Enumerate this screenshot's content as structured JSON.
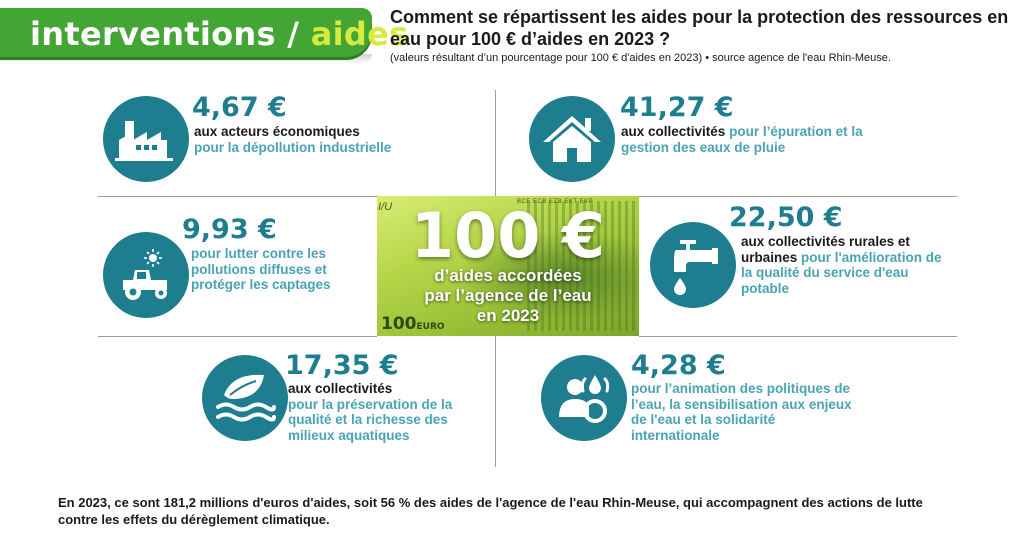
{
  "tab": {
    "word1": "interventions",
    "sep": " / ",
    "word2": "aides"
  },
  "header": {
    "title": "Comment se répartissent les aides pour la protection des ressources en eau pour 100 € d’aides en 2023 ?",
    "subtitle": "(valeurs résultant d’un pourcentage pour 100 € d'aides en 2023) • source agence de l'eau Rhin-Meuse."
  },
  "center": {
    "amount": "100 €",
    "line1": "d’aides accordées",
    "line2": "par l’agence de l’eau",
    "line3": "en 2023",
    "bill_code": "I/U",
    "bill_serials": "BCE ECB EZB EKT EKP",
    "bill_value": "100",
    "bill_currency": "EURO"
  },
  "items": [
    {
      "icon": "factory-icon",
      "amount": "4,67 €",
      "dark": "aux acteurs économiques",
      "light": "pour la dépollution industrielle"
    },
    {
      "icon": "house-icon",
      "amount": "41,27 €",
      "dark": "aux collectivités",
      "light": "pour l’épuration et la gestion des eaux de pluie"
    },
    {
      "icon": "tractor-icon",
      "amount": "9,93 €",
      "dark": "",
      "light": "pour lutter contre les pollutions diffuses et protéger les captages"
    },
    {
      "icon": "faucet-icon",
      "amount": "22,50 €",
      "dark": "aux collectivités rurales et urbaines",
      "light": "pour l'amélioration de la qualité du service d'eau potable"
    },
    {
      "icon": "leaf-water-icon",
      "amount": "17,35 €",
      "dark": "aux collectivités",
      "light": "pour la préservation de la qualité et la richesse des milieux aquatiques"
    },
    {
      "icon": "people-water-icon",
      "amount": "4,28 €",
      "dark": "",
      "light": "pour l’animation des politiques de l’eau, la sensibilisation aux enjeux de l'eau et la solidarité internationale"
    }
  ],
  "footer": "En 2023, ce sont 181,2 millions d'euros d'aides, soit 56 % des aides de l'agence de l'eau Rhin-Meuse, qui accompagnent des actions de lutte contre les effets du dérèglement climatique.",
  "colors": {
    "green": "#43a534",
    "accent": "#d7ea3f",
    "teal": "#1e7d8e",
    "light_teal": "#4aa3b5"
  }
}
